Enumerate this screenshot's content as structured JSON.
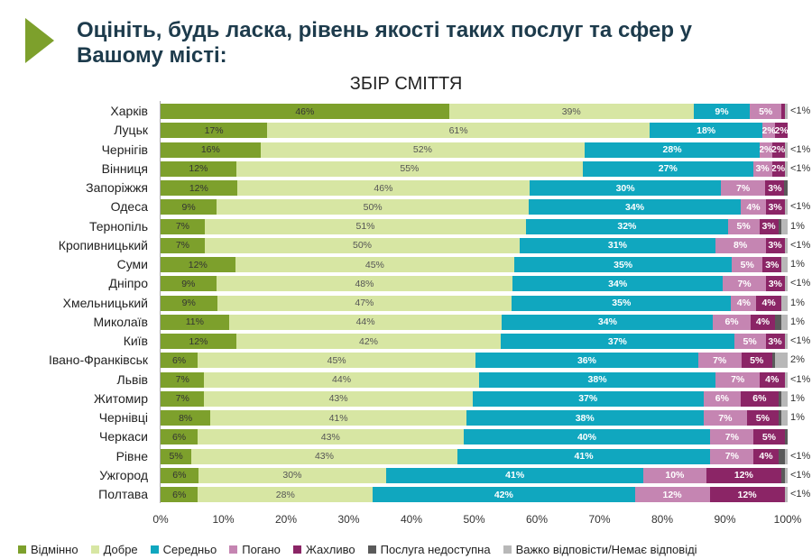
{
  "header": {
    "title": "Оцініть, будь ласка, рівень якості таких послуг та сфер у Вашому місті:"
  },
  "chart_data": {
    "type": "bar",
    "orientation": "horizontal",
    "stacked": true,
    "title": "ЗБІР СМІТТЯ",
    "xlim": [
      0,
      100
    ],
    "xticks": [
      "0%",
      "10%",
      "20%",
      "30%",
      "40%",
      "50%",
      "60%",
      "70%",
      "80%",
      "90%",
      "100%"
    ],
    "legend_position": "bottom",
    "series": [
      {
        "name": "Відмінно",
        "color": "#7da02c"
      },
      {
        "name": "Добре",
        "color": "#d7e6a3"
      },
      {
        "name": "Середньо",
        "color": "#10a7bf"
      },
      {
        "name": "Погано",
        "color": "#c585b2"
      },
      {
        "name": "Жахливо",
        "color": "#8b2566"
      },
      {
        "name": "Послуга недоступна",
        "color": "#5a5a5a"
      },
      {
        "name": "Важко відповісти/Немає відповіді",
        "color": "#b8b8b8"
      }
    ],
    "categories": [
      "Харків",
      "Луцьк",
      "Чернігів",
      "Вінниця",
      "Запоріжжя",
      "Одеса",
      "Тернопіль",
      "Кропивницький",
      "Суми",
      "Дніпро",
      "Хмельницький",
      "Миколаїв",
      "Київ",
      "Івано-Франківськ",
      "Львів",
      "Житомир",
      "Чернівці",
      "Черкаси",
      "Рівне",
      "Ужгород",
      "Полтава"
    ],
    "values": [
      [
        "46",
        "39",
        "9",
        "5",
        "<1",
        null,
        "<1"
      ],
      [
        "17",
        "61",
        "18",
        "2",
        "2",
        null,
        null
      ],
      [
        "16",
        "52",
        "28",
        "2",
        "2",
        null,
        "<1"
      ],
      [
        "12",
        "55",
        "27",
        "3",
        "2",
        null,
        "<1"
      ],
      [
        "12",
        "46",
        "30",
        "7",
        "3",
        "<1",
        null
      ],
      [
        "9",
        "50",
        "34",
        "4",
        "3",
        null,
        "<1"
      ],
      [
        "7",
        "51",
        "32",
        "5",
        "3",
        "<1",
        "1"
      ],
      [
        "7",
        "50",
        "31",
        "8",
        "3",
        null,
        "<1"
      ],
      [
        "12",
        "45",
        "35",
        "5",
        "3",
        null,
        "1"
      ],
      [
        "9",
        "48",
        "34",
        "7",
        "3",
        null,
        "<1"
      ],
      [
        "9",
        "47",
        "35",
        "4",
        "4",
        null,
        "1"
      ],
      [
        "11",
        "44",
        "34",
        "6",
        "4",
        "1",
        "1"
      ],
      [
        "12",
        "42",
        "37",
        "5",
        "3",
        null,
        "<1"
      ],
      [
        "6",
        "45",
        "36",
        "7",
        "5",
        "<1",
        "2"
      ],
      [
        "7",
        "44",
        "38",
        "7",
        "4",
        null,
        "<1"
      ],
      [
        "7",
        "43",
        "37",
        "6",
        "6",
        "<1",
        "1"
      ],
      [
        "8",
        "41",
        "38",
        "7",
        "5",
        "<1",
        "1"
      ],
      [
        "6",
        "43",
        "40",
        "7",
        "5",
        "<1",
        null
      ],
      [
        "5",
        "43",
        "41",
        "7",
        "4",
        "1",
        "<1"
      ],
      [
        "6",
        "30",
        "41",
        "10",
        "12",
        "<1",
        "<1"
      ],
      [
        "6",
        "28",
        "42",
        "12",
        "12",
        null,
        "<1"
      ]
    ]
  }
}
